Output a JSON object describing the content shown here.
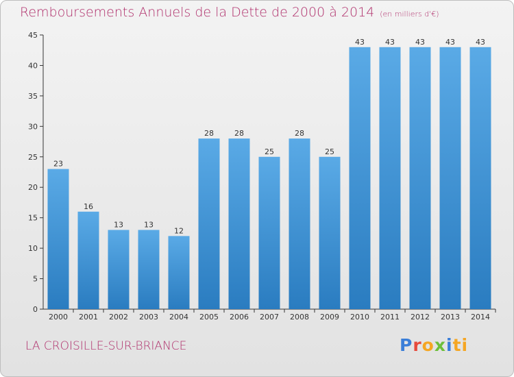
{
  "title": "Remboursements Annuels de la Dette de 2000 à 2014",
  "unit": "(en milliers d'€)",
  "city": "LA CROISILLE-SUR-BRIANCE",
  "logo": {
    "letters": [
      "P",
      "r",
      "o",
      "x",
      "i",
      "ti"
    ]
  },
  "colors": {
    "bar_light": "#5aaae6",
    "bar_dark": "#2a7cc0",
    "title": "#b0306c",
    "axis": "#333333"
  },
  "chart_data": {
    "type": "bar",
    "title": "Remboursements Annuels de la Dette de 2000 à 2014",
    "xlabel": "",
    "ylabel": "",
    "ylim": [
      0,
      45
    ],
    "yticks": [
      0,
      5,
      10,
      15,
      20,
      25,
      30,
      35,
      40,
      45
    ],
    "grid": false,
    "categories": [
      "2000",
      "2001",
      "2002",
      "2003",
      "2004",
      "2005",
      "2006",
      "2007",
      "2008",
      "2009",
      "2010",
      "2011",
      "2012",
      "2013",
      "2014"
    ],
    "values": [
      23,
      16,
      13,
      13,
      12,
      28,
      28,
      25,
      28,
      25,
      43,
      43,
      43,
      43,
      43
    ]
  }
}
